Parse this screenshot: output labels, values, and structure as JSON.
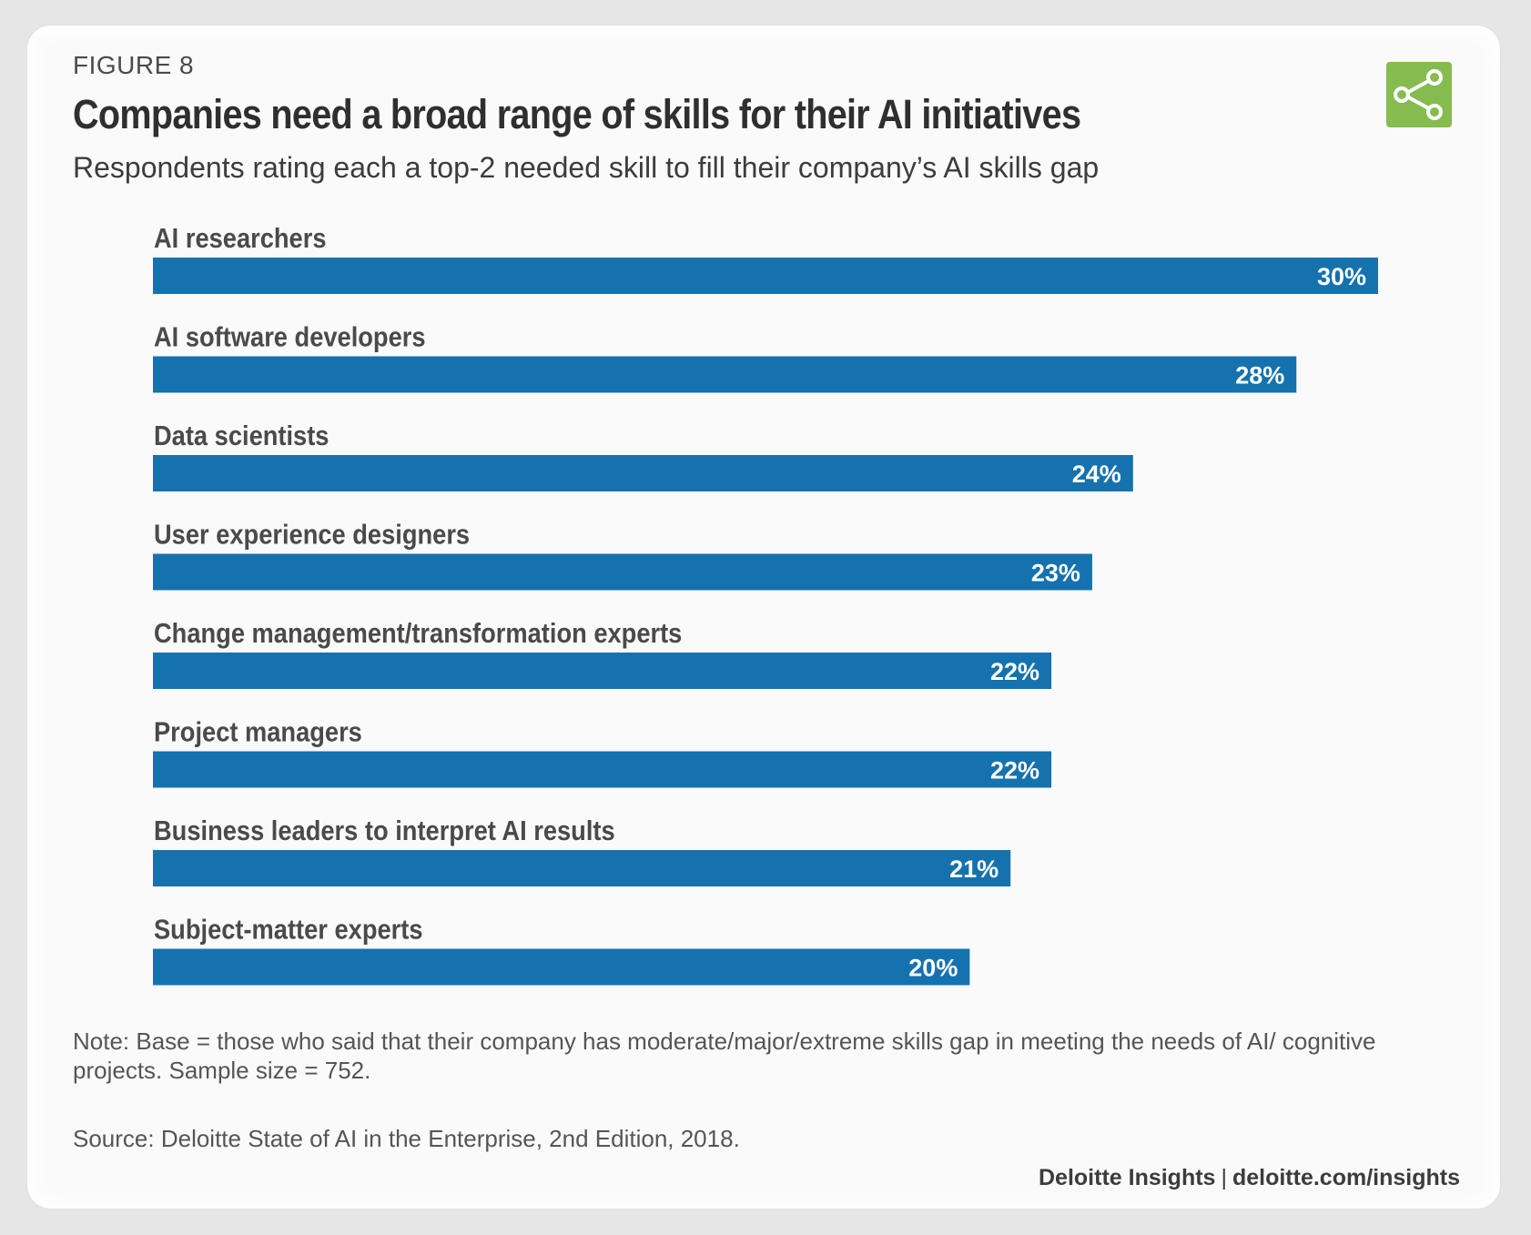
{
  "figure_label": "FIGURE 8",
  "title": "Companies need a broad range of skills for their AI initiatives",
  "subtitle": "Respondents rating each a top-2 needed skill to fill their company’s AI skills gap",
  "share_icon": "share-icon",
  "note": "Note: Base = those who said that their company has moderate/major/extreme skills gap in meeting the needs of AI/ cognitive projects. Sample size = 752.",
  "source": "Source: Deloitte State of AI in the Enterprise, 2nd Edition, 2018.",
  "credit": {
    "brand": "Deloitte Insights",
    "separator": "|",
    "url": "deloitte.com/insights"
  },
  "colors": {
    "bar": "#1572ae",
    "share_button": "#86bc4f",
    "label": "#4a4a4a"
  },
  "chart_data": {
    "type": "bar",
    "orientation": "horizontal",
    "categories": [
      "AI researchers",
      "AI software developers",
      "Data scientists",
      "User experience designers",
      "Change management/transformation experts",
      "Project managers",
      "Business leaders to interpret AI results",
      "Subject-matter experts"
    ],
    "values": [
      30,
      28,
      24,
      23,
      22,
      22,
      21,
      20
    ],
    "value_labels": [
      "30%",
      "28%",
      "24%",
      "23%",
      "22%",
      "22%",
      "21%",
      "20%"
    ],
    "unit": "%",
    "xlim": [
      0,
      30
    ],
    "grid": false
  }
}
